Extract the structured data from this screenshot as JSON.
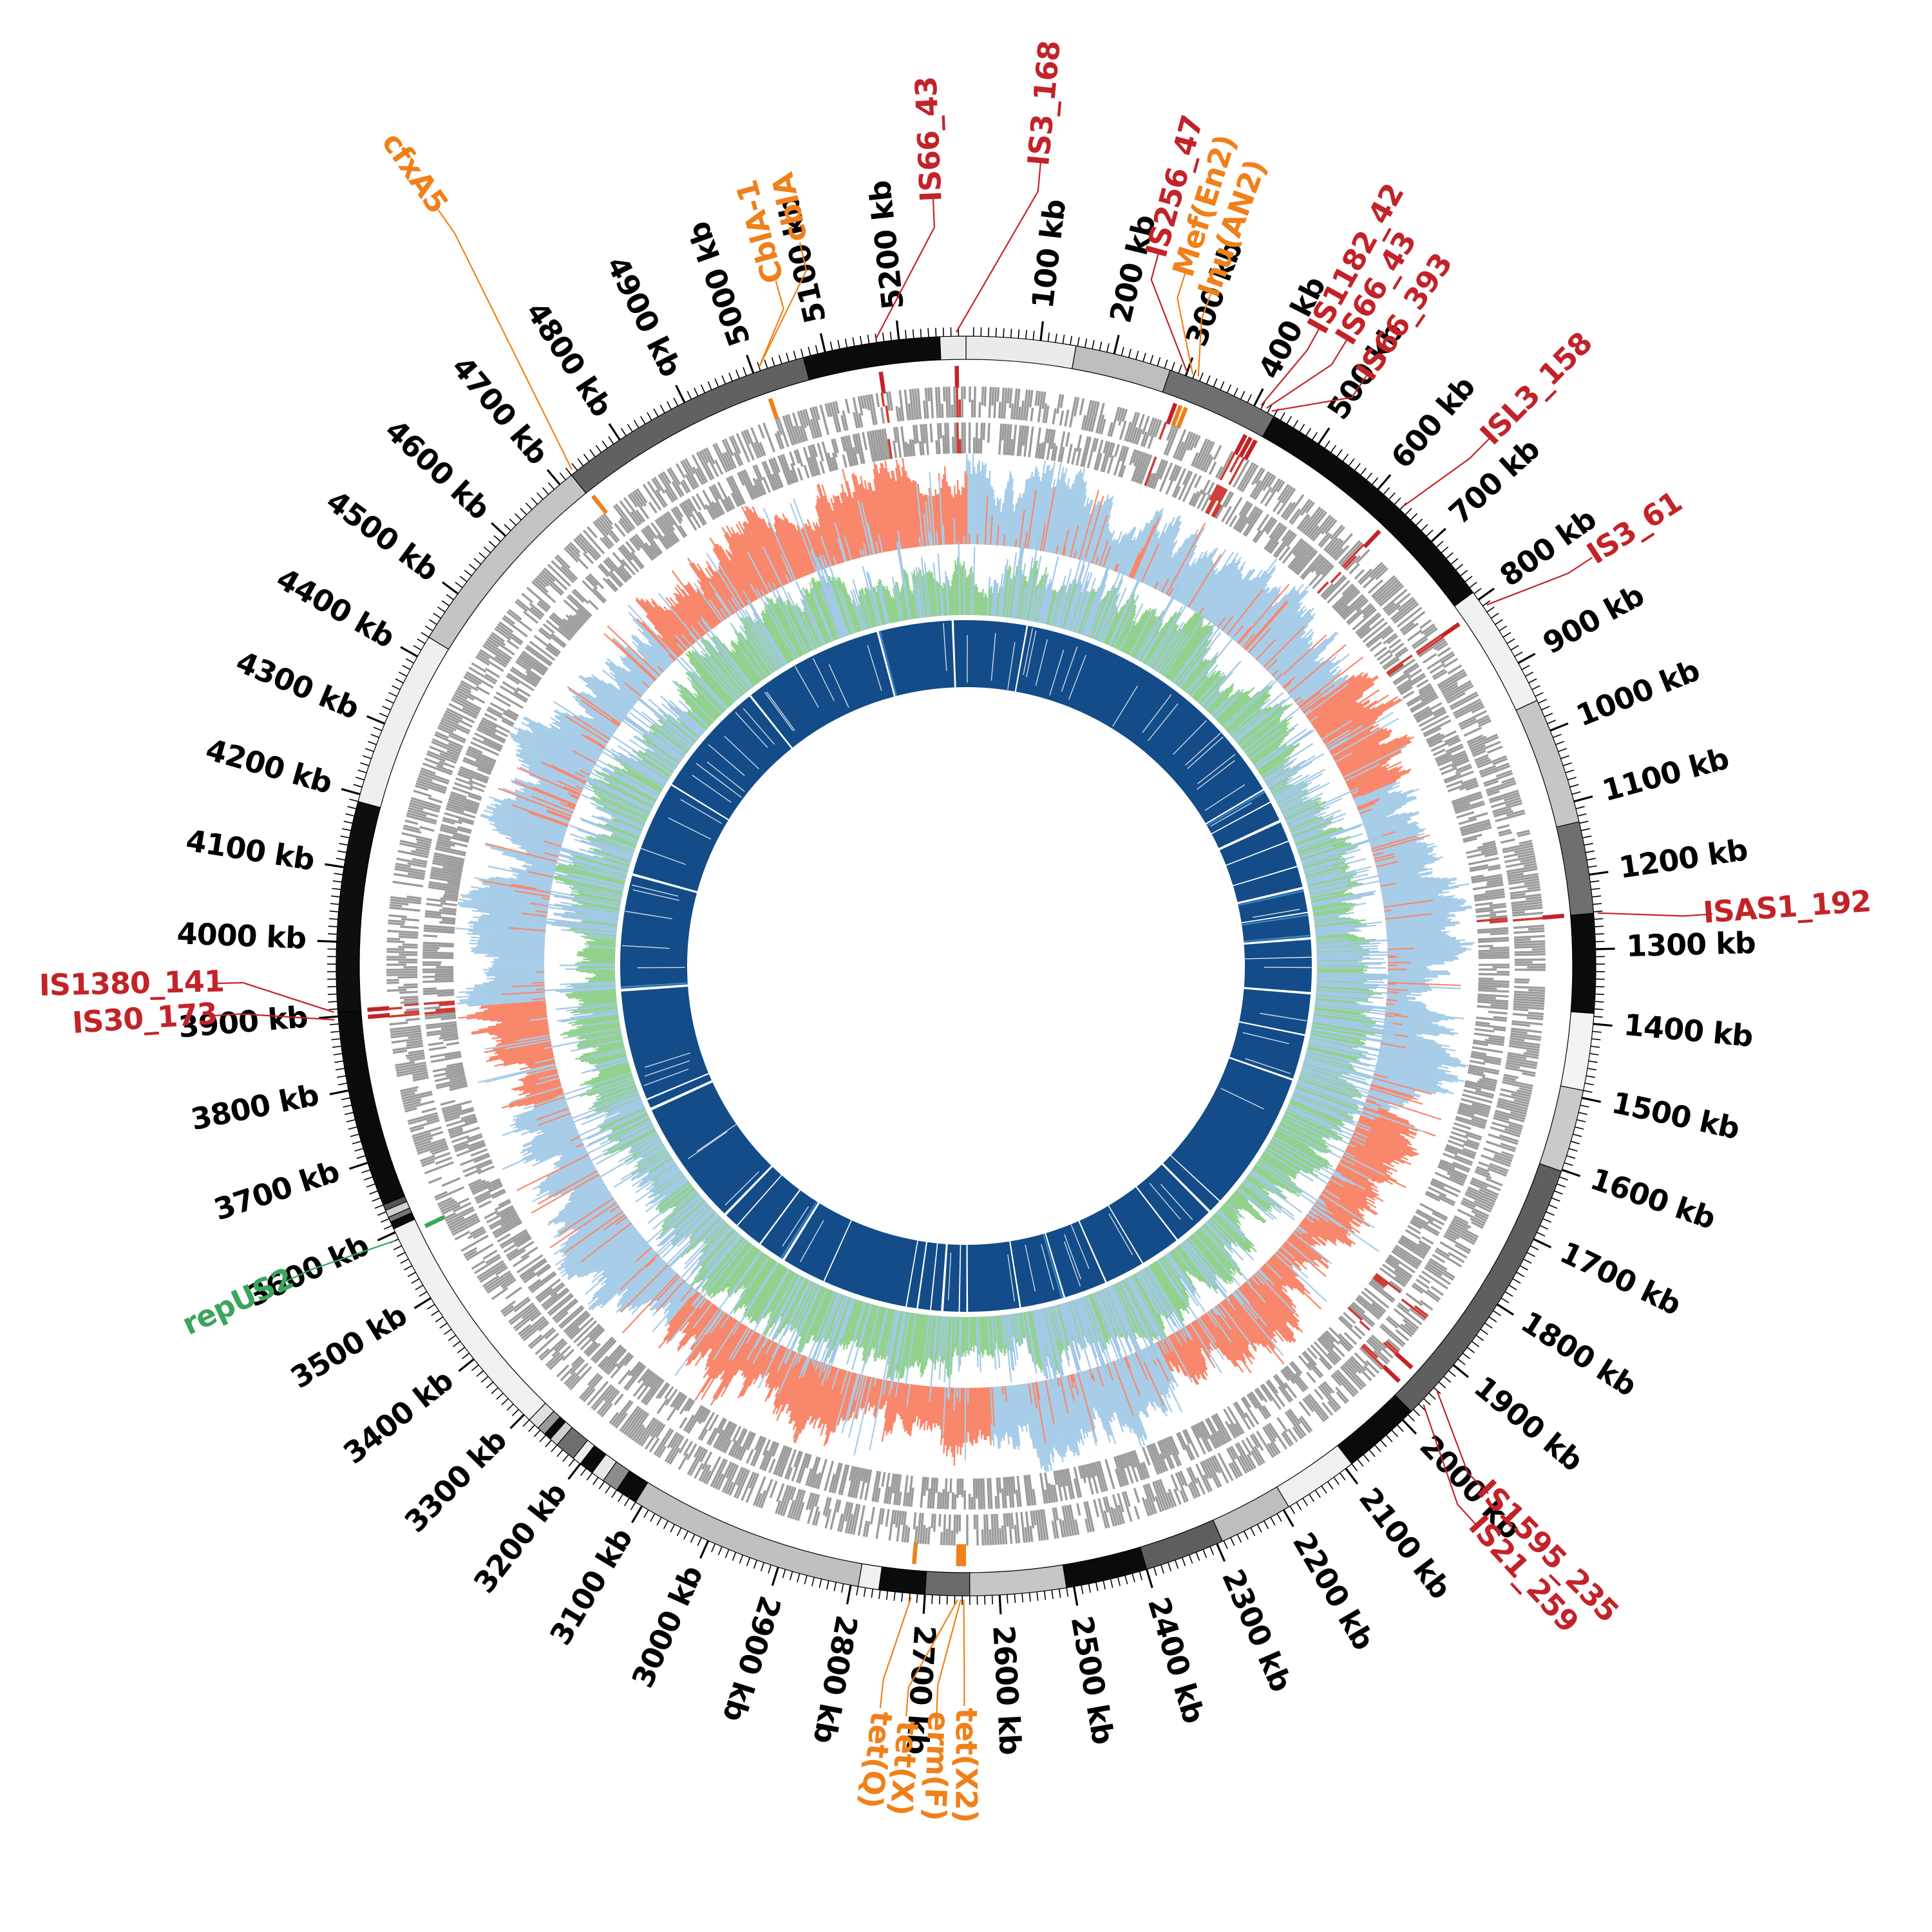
{
  "chart_data": {
    "type": "circos",
    "title": "",
    "genome_length_kb": 5290,
    "axis": {
      "major_tick_kb": 100,
      "minor_tick_kb": 10,
      "tick_label_suffix": " kb",
      "tick_labels": [
        "100 kb",
        "200 kb",
        "300 kb",
        "400 kb",
        "500 kb",
        "600 kb",
        "700 kb",
        "800 kb",
        "900 kb",
        "1000 kb",
        "1100 kb",
        "1200 kb",
        "1300 kb",
        "1400 kb",
        "1500 kb",
        "1600 kb",
        "1700 kb",
        "1800 kb",
        "1900 kb",
        "2000 kb",
        "2100 kb",
        "2200 kb",
        "2300 kb",
        "2400 kb",
        "2500 kb",
        "2600 kb",
        "2700 kb",
        "2800 kb",
        "2900 kb",
        "3000 kb",
        "3100 kb",
        "3200 kb",
        "3300 kb",
        "3400 kb",
        "3500 kb",
        "3600 kb",
        "3700 kb",
        "3800 kb",
        "3900 kb",
        "4000 kb",
        "4100 kb",
        "4200 kb",
        "4300 kb",
        "4400 kb",
        "4500 kb",
        "4600 kb",
        "4700 kb",
        "4800 kb",
        "4900 kb",
        "5000 kb",
        "5100 kb",
        "5200 kb"
      ]
    },
    "colors": {
      "is_element": "#c22328",
      "amr_gene": "#f08019",
      "plasmid_rep": "#3ca45c",
      "skew_salmon": "#f9876b",
      "skew_blue": "#a8cde8",
      "gc_green": "#92d28c",
      "gc_blue": "#a3c9e6",
      "gene_gray": "#9b9b9b",
      "gene_red": "#cc3b35",
      "coverage_navy": "#134c88",
      "coverage_light": "#3b87c8",
      "outline": "#000000"
    },
    "rings": [
      {
        "name": "contig-ring",
        "r_in": 942,
        "r_out": 978
      },
      {
        "name": "marker-ring",
        "r_in": 898,
        "r_out": 932
      },
      {
        "name": "gene-track-forward",
        "r_in": 852,
        "r_out": 900
      },
      {
        "name": "gene-track-reverse",
        "r_in": 796,
        "r_out": 844
      },
      {
        "name": "skew-track",
        "baseline": 655,
        "max": 795
      },
      {
        "name": "gc-track",
        "baseline": 545,
        "max": 678
      },
      {
        "name": "coverage-ring",
        "r_in": 433,
        "r_out": 537
      }
    ],
    "contigs": [
      [
        0,
        148,
        "#ebebeb"
      ],
      [
        148,
        278,
        "#bdbdbd"
      ],
      [
        278,
        430,
        "#6f6f6f"
      ],
      [
        430,
        788,
        "#0b0b0b"
      ],
      [
        788,
        956,
        "#f1f1f1"
      ],
      [
        956,
        1128,
        "#c6c6c6"
      ],
      [
        1128,
        1252,
        "#6f6f6f"
      ],
      [
        1252,
        1386,
        "#0b0b0b"
      ],
      [
        1386,
        1490,
        "#f3f3f3"
      ],
      [
        1490,
        1602,
        "#cacaca"
      ],
      [
        1602,
        1984,
        "#5f5f5f"
      ],
      [
        1984,
        2090,
        "#0b0b0b"
      ],
      [
        2090,
        2192,
        "#f0f0f0"
      ],
      [
        2192,
        2292,
        "#bebebe"
      ],
      [
        2292,
        2400,
        "#5e5e5e"
      ],
      [
        2400,
        2510,
        "#0b0b0b"
      ],
      [
        2510,
        2640,
        "#c6c6c6"
      ],
      [
        2640,
        2700,
        "#6a6a6a"
      ],
      [
        2700,
        2762,
        "#0b0b0b"
      ],
      [
        2762,
        2790,
        "#f0f0f0"
      ],
      [
        2790,
        3110,
        "#c0c0c0"
      ],
      [
        3110,
        3140,
        "#0b0b0b"
      ],
      [
        3140,
        3162,
        "#8c8c8c"
      ],
      [
        3162,
        3180,
        "#e8e8e8"
      ],
      [
        3180,
        3200,
        "#0b0b0b"
      ],
      [
        3200,
        3212,
        "#ededed"
      ],
      [
        3212,
        3240,
        "#6f6f6f"
      ],
      [
        3240,
        3252,
        "#cfcfcf"
      ],
      [
        3252,
        3262,
        "#0b0b0b"
      ],
      [
        3262,
        3274,
        "#9a9a9a"
      ],
      [
        3274,
        3290,
        "#e0e0e0"
      ],
      [
        3290,
        3605,
        "#f1f1f1"
      ],
      [
        3605,
        3615,
        "#0b0b0b"
      ],
      [
        3615,
        3622,
        "#777777"
      ],
      [
        3622,
        3632,
        "#d0d0d0"
      ],
      [
        3632,
        3640,
        "#555555"
      ],
      [
        3640,
        3905,
        "#0b0b0b"
      ],
      [
        3905,
        4190,
        "#0e0e0e"
      ],
      [
        4190,
        4430,
        "#efefef"
      ],
      [
        4430,
        4720,
        "#c4c4c4"
      ],
      [
        4720,
        5070,
        "#616161"
      ],
      [
        5070,
        5255,
        "#0b0b0b"
      ],
      [
        5255,
        5290,
        "#ebebeb"
      ]
    ],
    "annotations": [
      {
        "label": "cblA",
        "kb": 5010,
        "label_kb": 5100,
        "label_r": 1209,
        "cat": "amr"
      },
      {
        "label": "CblA-1",
        "kb": 5010,
        "label_kb": 5062,
        "label_r": 1184,
        "cat": "amr"
      },
      {
        "label": "cfxA5",
        "kb": 4725,
        "label_kb": 4777,
        "label_r": 1500,
        "cat": "amr"
      },
      {
        "label": "IS66_43",
        "kb": 5170,
        "label_kb": 5254,
        "label_r": 1285,
        "cat": "is"
      },
      {
        "label": "IS3_168",
        "kb": 5277,
        "label_kb": 78,
        "label_r": 1345,
        "cat": "is"
      },
      {
        "label": "IS256_47",
        "kb": 300,
        "label_kb": 222,
        "label_r": 1253,
        "cat": "is"
      },
      {
        "label": "Mef(En2)",
        "kb": 308,
        "label_kb": 258,
        "label_r": 1237,
        "cat": "amr"
      },
      {
        "label": "lnu(AN2)",
        "kb": 316,
        "label_kb": 294,
        "label_r": 1218,
        "cat": "amr"
      },
      {
        "label": "IS1182_42",
        "kb": 408,
        "label_kb": 426,
        "label_r": 1254,
        "cat": "is"
      },
      {
        "label": "IS66_43",
        "kb": 416,
        "label_kb": 460,
        "label_r": 1230,
        "cat": "is"
      },
      {
        "label": "IS66_393",
        "kb": 424,
        "label_kb": 502,
        "label_r": 1216,
        "cat": "is"
      },
      {
        "label": "ISL3_158",
        "kb": 640,
        "label_kb": 658,
        "label_r": 1260,
        "cat": "is"
      },
      {
        "label": "IS3_61",
        "kb": 812,
        "label_kb": 836,
        "label_r": 1241,
        "cat": "is"
      },
      {
        "label": "ISAS1_192",
        "kb": 1252,
        "label_kb": 1264,
        "label_r": 1278,
        "cat": "is"
      },
      {
        "label": "IS1595_235",
        "kb": 1940,
        "label_kb": 1988,
        "label_r": 1281,
        "cat": "is"
      },
      {
        "label": "IS21_259",
        "kb": 1966,
        "label_kb": 2022,
        "label_r": 1281,
        "cat": "is"
      },
      {
        "label": "tet(Q)",
        "kb": 2718,
        "label_kb": 2742,
        "label_r": 1240,
        "cat": "amr"
      },
      {
        "label": "tet(X)",
        "kb": 2656,
        "label_kb": 2712,
        "label_r": 1249,
        "cat": "amr"
      },
      {
        "label": "erm(F)",
        "kb": 2652,
        "label_kb": 2678,
        "label_r": 1243,
        "cat": "amr"
      },
      {
        "label": "tet(X2)",
        "kb": 2648,
        "label_kb": 2647,
        "label_r": 1241,
        "cat": "amr"
      },
      {
        "label": "repUS2",
        "kb": 3590,
        "label_kb": 3602,
        "label_r": 1245,
        "cat": "plasmid"
      },
      {
        "label": "IS30_173",
        "kb": 3896,
        "label_kb": 3912,
        "label_r": 1278,
        "cat": "is"
      },
      {
        "label": "IS1380_141",
        "kb": 3906,
        "label_kb": 3948,
        "label_r": 1296,
        "cat": "is"
      }
    ],
    "skew_salmon_regions": [
      [
        780,
        980
      ],
      [
        1600,
        2250
      ],
      [
        2600,
        3230
      ],
      [
        3700,
        3900
      ],
      [
        4650,
        5290
      ]
    ],
    "gc_blue_heavy_regions": [
      [
        60,
        330
      ],
      [
        850,
        1650
      ],
      [
        2200,
        2550
      ],
      [
        3230,
        3650
      ],
      [
        4050,
        4600
      ]
    ],
    "gene_red_extra_kb": [
      [
        1862,
        1876
      ]
    ],
    "coverage_gaps": [
      [
        148,
        152
      ],
      [
        870,
        874
      ],
      [
        905,
        908
      ],
      [
        955,
        962
      ],
      [
        1010,
        1013
      ],
      [
        1075,
        1078
      ],
      [
        1128,
        1134
      ],
      [
        1190,
        1193
      ],
      [
        1252,
        1258
      ],
      [
        1300,
        1302
      ],
      [
        1386,
        1392
      ],
      [
        1490,
        1494
      ],
      [
        1602,
        1607
      ],
      [
        1950,
        1953
      ],
      [
        1984,
        1990
      ],
      [
        2090,
        2094
      ],
      [
        2192,
        2195
      ],
      [
        2292,
        2296
      ],
      [
        2400,
        2404
      ],
      [
        2510,
        2514
      ],
      [
        2640,
        2644
      ],
      [
        2660,
        2663
      ],
      [
        2700,
        2706
      ],
      [
        2730,
        2733
      ],
      [
        2762,
        2766
      ],
      [
        2790,
        2793
      ],
      [
        3000,
        3003
      ],
      [
        3110,
        3116
      ],
      [
        3180,
        3184
      ],
      [
        3252,
        3255
      ],
      [
        3290,
        3296
      ],
      [
        3605,
        3612
      ],
      [
        3632,
        3636
      ],
      [
        3905,
        3912
      ],
      [
        4190,
        4196
      ],
      [
        4430,
        4434
      ],
      [
        4720,
        4725
      ],
      [
        5070,
        5075
      ],
      [
        5255,
        5260
      ]
    ],
    "coverage_light_stripes": [
      [
        876,
        880
      ],
      [
        1136,
        1140
      ],
      [
        1196,
        1200
      ],
      [
        1246,
        1250
      ],
      [
        2406,
        2410
      ],
      [
        3118,
        3122
      ],
      [
        3914,
        3918
      ],
      [
        5076,
        5080
      ]
    ],
    "seed": 42
  }
}
